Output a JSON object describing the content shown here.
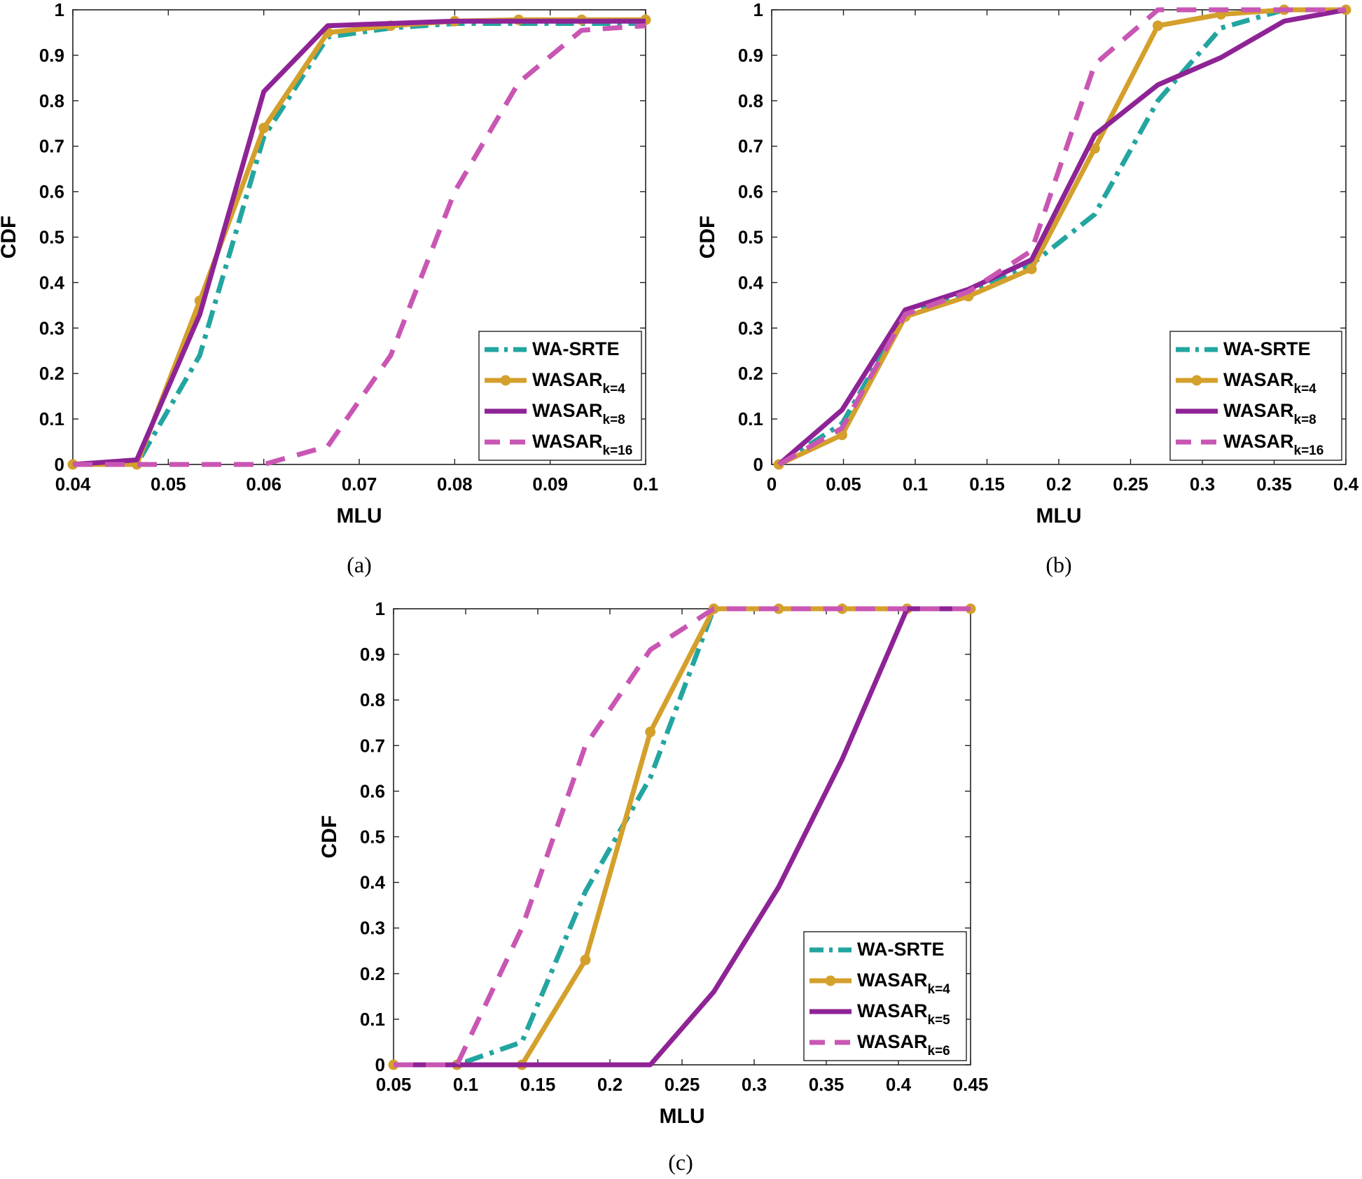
{
  "colors": {
    "wa_srte": "#23a5a0",
    "wasar_k4": "#d4a02c",
    "wasar_k8": "#8e2396",
    "wasar_k16": "#c956b3"
  },
  "chart_data": [
    {
      "id": "a",
      "type": "line",
      "caption": "(a)",
      "xlabel": "MLU",
      "ylabel": "CDF",
      "xlim": [
        0.04,
        0.1
      ],
      "ylim": [
        0,
        1
      ],
      "xticks": [
        "0.04",
        "0.05",
        "0.06",
        "0.07",
        "0.08",
        "0.09",
        "0.1"
      ],
      "yticks": [
        "0",
        "0.1",
        "0.2",
        "0.3",
        "0.4",
        "0.5",
        "0.6",
        "0.7",
        "0.8",
        "0.9",
        "1"
      ],
      "legend": "bottom-right",
      "series": [
        {
          "name": "WA-SRTE",
          "base": "WA-SRTE",
          "sub": "",
          "style": "dashdot",
          "color": "#23a5a0",
          "x": [
            0.04,
            0.0467,
            0.0533,
            0.06,
            0.0667,
            0.0733,
            0.08,
            0.0867,
            0.0933,
            0.1
          ],
          "y": [
            0,
            0,
            0.24,
            0.72,
            0.94,
            0.96,
            0.97,
            0.97,
            0.97,
            0.97
          ]
        },
        {
          "name": "WASAR_k=4",
          "base": "WASAR",
          "sub": "k=4",
          "style": "solid-marker",
          "color": "#d4a02c",
          "x": [
            0.04,
            0.0467,
            0.0533,
            0.06,
            0.0667,
            0.0733,
            0.08,
            0.0867,
            0.0933,
            0.1
          ],
          "y": [
            0,
            0,
            0.36,
            0.74,
            0.95,
            0.965,
            0.975,
            0.978,
            0.978,
            0.978
          ]
        },
        {
          "name": "WASAR_k=8",
          "base": "WASAR",
          "sub": "k=8",
          "style": "solid",
          "color": "#8e2396",
          "x": [
            0.04,
            0.0467,
            0.0533,
            0.06,
            0.0667,
            0.0733,
            0.08,
            0.0867,
            0.0933,
            0.1
          ],
          "y": [
            0,
            0.01,
            0.33,
            0.82,
            0.965,
            0.97,
            0.975,
            0.975,
            0.975,
            0.975
          ]
        },
        {
          "name": "WASAR_k=16",
          "base": "WASAR",
          "sub": "k=16",
          "style": "dashed",
          "color": "#c956b3",
          "x": [
            0.04,
            0.0467,
            0.0533,
            0.06,
            0.0667,
            0.0733,
            0.08,
            0.0867,
            0.0933,
            0.1
          ],
          "y": [
            0,
            0,
            0,
            0,
            0.04,
            0.24,
            0.6,
            0.84,
            0.955,
            0.965
          ]
        }
      ]
    },
    {
      "id": "b",
      "type": "line",
      "caption": "(b)",
      "xlabel": "MLU",
      "ylabel": "CDF",
      "xlim": [
        0,
        0.4
      ],
      "ylim": [
        0,
        1
      ],
      "xticks": [
        "0",
        "0.05",
        "0.1",
        "0.15",
        "0.2",
        "0.25",
        "0.3",
        "0.35",
        "0.4"
      ],
      "yticks": [
        "0",
        "0.1",
        "0.2",
        "0.3",
        "0.4",
        "0.5",
        "0.6",
        "0.7",
        "0.8",
        "0.9",
        "1"
      ],
      "legend": "bottom-right",
      "series": [
        {
          "name": "WA-SRTE",
          "base": "WA-SRTE",
          "sub": "",
          "style": "dashdot",
          "color": "#23a5a0",
          "x": [
            0.005,
            0.049,
            0.093,
            0.137,
            0.181,
            0.225,
            0.269,
            0.313,
            0.357,
            0.4
          ],
          "y": [
            0,
            0.09,
            0.33,
            0.38,
            0.44,
            0.55,
            0.8,
            0.96,
            1.0,
            1.0
          ]
        },
        {
          "name": "WASAR_k=4",
          "base": "WASAR",
          "sub": "k=4",
          "style": "solid-marker",
          "color": "#d4a02c",
          "x": [
            0.005,
            0.049,
            0.093,
            0.137,
            0.181,
            0.225,
            0.269,
            0.313,
            0.357,
            0.4
          ],
          "y": [
            0,
            0.065,
            0.325,
            0.37,
            0.43,
            0.695,
            0.965,
            0.99,
            1.0,
            1.0
          ]
        },
        {
          "name": "WASAR_k=8",
          "base": "WASAR",
          "sub": "k=8",
          "style": "solid",
          "color": "#8e2396",
          "x": [
            0.005,
            0.049,
            0.093,
            0.137,
            0.181,
            0.225,
            0.269,
            0.313,
            0.357,
            0.4
          ],
          "y": [
            0,
            0.12,
            0.34,
            0.385,
            0.45,
            0.725,
            0.835,
            0.895,
            0.975,
            1.0
          ]
        },
        {
          "name": "WASAR_k=16",
          "base": "WASAR",
          "sub": "k=16",
          "style": "dashed",
          "color": "#c956b3",
          "x": [
            0.005,
            0.049,
            0.093,
            0.137,
            0.181,
            0.225,
            0.269,
            0.313,
            0.357,
            0.4
          ],
          "y": [
            0,
            0.08,
            0.33,
            0.38,
            0.47,
            0.88,
            1.0,
            1.0,
            1.0,
            1.0
          ]
        }
      ]
    },
    {
      "id": "c",
      "type": "line",
      "caption": "(c)",
      "xlabel": "MLU",
      "ylabel": "CDF",
      "xlim": [
        0.05,
        0.45
      ],
      "ylim": [
        0,
        1
      ],
      "xticks": [
        "0.05",
        "0.1",
        "0.15",
        "0.2",
        "0.25",
        "0.3",
        "0.35",
        "0.4",
        "0.45"
      ],
      "yticks": [
        "0",
        "0.1",
        "0.2",
        "0.3",
        "0.4",
        "0.5",
        "0.6",
        "0.7",
        "0.8",
        "0.9",
        "1"
      ],
      "legend": "bottom-right",
      "series": [
        {
          "name": "WA-SRTE",
          "base": "WA-SRTE",
          "sub": "",
          "style": "dashdot",
          "color": "#23a5a0",
          "x": [
            0.05,
            0.094,
            0.139,
            0.183,
            0.228,
            0.272,
            0.317,
            0.361,
            0.406,
            0.45
          ],
          "y": [
            0,
            0,
            0.05,
            0.38,
            0.63,
            1.0,
            1.0,
            1.0,
            1.0,
            1.0
          ]
        },
        {
          "name": "WASAR_k=4",
          "base": "WASAR",
          "sub": "k=4",
          "style": "solid-marker",
          "color": "#d4a02c",
          "x": [
            0.05,
            0.094,
            0.139,
            0.183,
            0.228,
            0.272,
            0.317,
            0.361,
            0.406,
            0.45
          ],
          "y": [
            0,
            0,
            0,
            0.23,
            0.73,
            1.0,
            1.0,
            1.0,
            1.0,
            1.0
          ]
        },
        {
          "name": "WASAR_k=5",
          "base": "WASAR",
          "sub": "k=5",
          "style": "solid",
          "color": "#8e2396",
          "x": [
            0.05,
            0.094,
            0.139,
            0.183,
            0.228,
            0.272,
            0.317,
            0.361,
            0.406,
            0.45
          ],
          "y": [
            0,
            0,
            0,
            0,
            0,
            0.16,
            0.39,
            0.67,
            1.0,
            1.0
          ]
        },
        {
          "name": "WASAR_k=6",
          "base": "WASAR",
          "sub": "k=6",
          "style": "dashed",
          "color": "#c956b3",
          "x": [
            0.05,
            0.094,
            0.139,
            0.183,
            0.228,
            0.272,
            0.317,
            0.361,
            0.406,
            0.45
          ],
          "y": [
            0,
            0,
            0.3,
            0.7,
            0.91,
            1.0,
            1.0,
            1.0,
            1.0,
            1.0
          ]
        }
      ]
    }
  ]
}
